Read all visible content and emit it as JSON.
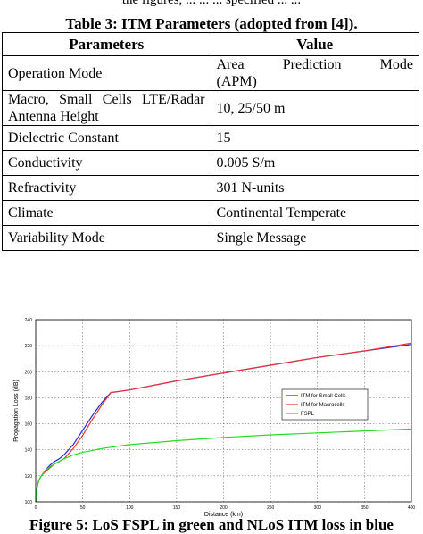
{
  "top_cut_text": "the figures, ... ... ... specified ... ...",
  "table": {
    "caption": "Table 3: ITM Parameters (adopted from [4]).",
    "headers": [
      "Parameters",
      "Value"
    ],
    "rows": [
      {
        "param": "Operation Mode",
        "value_l1": "Area Prediction Mode",
        "value_l2": "(APM)"
      },
      {
        "param_l1": "Macro, Small Cells LTE/Radar",
        "param_l2": "Antenna Height",
        "value": "10, 25/50 m"
      },
      {
        "param": "Dielectric Constant",
        "value": "15"
      },
      {
        "param": "Conductivity",
        "value": "0.005 S/m"
      },
      {
        "param": "Refractivity",
        "value": "301 N-units"
      },
      {
        "param": "Climate",
        "value": "Continental Temperate"
      },
      {
        "param": "Variability Mode",
        "value": "Single Message"
      }
    ]
  },
  "chart_data": {
    "type": "line",
    "xlabel": "Distance (km)",
    "ylabel": "Propagation Loss (dB)",
    "xlim": [
      0,
      400
    ],
    "ylim": [
      100,
      240
    ],
    "xticks": [
      0,
      50,
      100,
      150,
      200,
      250,
      300,
      350,
      400
    ],
    "yticks": [
      100,
      120,
      140,
      160,
      180,
      200,
      220,
      240
    ],
    "grid": true,
    "legend_position": "right",
    "series": [
      {
        "name": "ITM for Small Cells",
        "color": "#2222dd",
        "x": [
          0,
          1,
          3,
          6,
          10,
          15,
          20,
          25,
          30,
          40,
          50,
          60,
          70,
          80,
          100,
          150,
          200,
          250,
          300,
          350,
          400
        ],
        "y": [
          100,
          110,
          116,
          120,
          124,
          128,
          131,
          133,
          136,
          144,
          155,
          166,
          176,
          184,
          186,
          193,
          199,
          205,
          211,
          216,
          221
        ]
      },
      {
        "name": "ITM for Macrocells",
        "color": "#ee3333",
        "x": [
          0,
          1,
          3,
          6,
          10,
          15,
          20,
          25,
          30,
          40,
          50,
          60,
          70,
          80,
          100,
          150,
          200,
          250,
          300,
          350,
          400
        ],
        "y": [
          100,
          110,
          116,
          120,
          123,
          126,
          129,
          131,
          133,
          141,
          151,
          163,
          174,
          184,
          186,
          193,
          199,
          205,
          211,
          216,
          222
        ]
      },
      {
        "name": "FSPL",
        "color": "#22dd22",
        "x": [
          0,
          1,
          3,
          6,
          10,
          15,
          20,
          25,
          30,
          40,
          50,
          60,
          70,
          80,
          100,
          150,
          200,
          250,
          300,
          350,
          400
        ],
        "y": [
          100,
          110,
          116,
          120,
          124,
          127,
          129,
          131,
          133,
          136,
          138,
          139.5,
          141,
          142,
          144,
          147,
          149.5,
          151.5,
          153,
          154.5,
          156
        ]
      }
    ]
  },
  "figure_caption": "Figure 5: LoS FSPL in green and NLoS ITM loss in blue"
}
